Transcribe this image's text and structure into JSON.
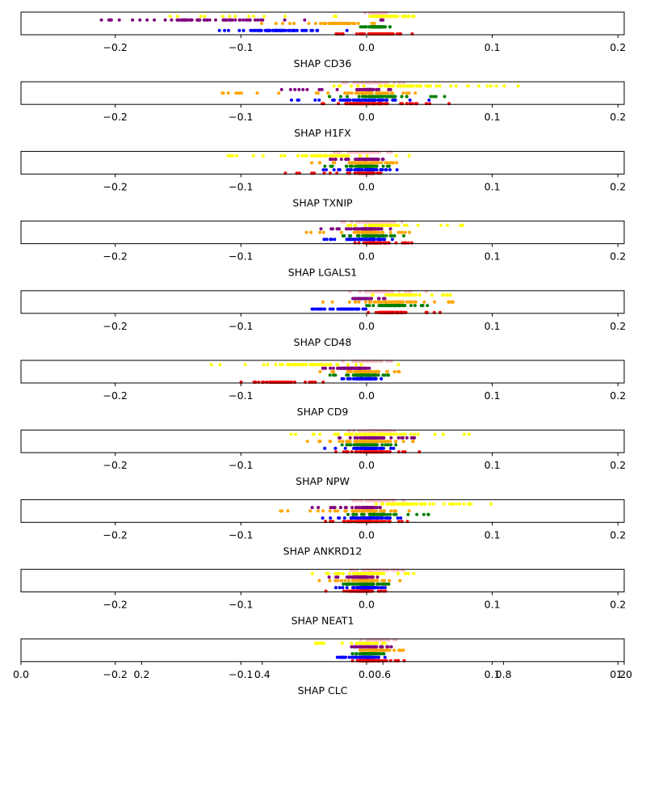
{
  "chart_data": {
    "type": "scatter",
    "subplot_type": "strip plots of SHAP values",
    "xlim": [
      -0.275,
      0.205
    ],
    "x_ticks": [
      -0.2,
      -0.1,
      0.0,
      0.1,
      0.2
    ],
    "x_tick_labels": [
      "−0.2",
      "−0.1",
      "0.0",
      "0.1",
      "0.2"
    ],
    "grid": false,
    "legend": "none",
    "overlay_axis": {
      "ticks": [
        0.0,
        0.2,
        0.4,
        0.6,
        0.8,
        1.0
      ],
      "tick_labels": [
        "0.0",
        "0.2",
        "0.4",
        "0.6",
        "0.8",
        "1.0"
      ]
    },
    "group_colors": [
      "#ffc0cb",
      "#ffff00",
      "#800080",
      "#ffa500",
      "#008000",
      "#0000ff",
      "#ff0000"
    ],
    "panels": [
      {
        "xlabel": "SHAP CD36",
        "groups": [
          {
            "color": "#ffc0cb",
            "spread": 0.012,
            "center": 0.008
          },
          {
            "color": "#ffff00",
            "min": -0.18,
            "max": 0.058,
            "center": 0.02
          },
          {
            "color": "#800080",
            "min": -0.225,
            "max": -0.035,
            "center": -0.13,
            "extra": [
              [
                0.01,
                0.015
              ]
            ]
          },
          {
            "color": "#ffa500",
            "min": -0.085,
            "max": 0.01,
            "center": -0.02
          },
          {
            "color": "#008000",
            "min": -0.005,
            "max": 0.02,
            "center": 0.008
          },
          {
            "color": "#0000ff",
            "min": -0.125,
            "max": -0.015,
            "center": -0.07
          },
          {
            "color": "#ff0000",
            "min": -0.025,
            "max": 0.037,
            "center": 0.01
          }
        ]
      },
      {
        "xlabel": "SHAP H1FX",
        "groups": [
          {
            "color": "#ffc0cb",
            "min": -0.02,
            "max": 0.03,
            "center": 0.005
          },
          {
            "color": "#ffff00",
            "min": -0.03,
            "max": 0.123,
            "center": 0.03
          },
          {
            "color": "#800080",
            "min": -0.068,
            "max": 0.02,
            "center": 0.0
          },
          {
            "color": "#ffa500",
            "min": -0.12,
            "max": 0.04,
            "center": 0.0
          },
          {
            "color": "#008000",
            "min": -0.03,
            "max": 0.068,
            "center": 0.01
          },
          {
            "color": "#0000ff",
            "min": -0.06,
            "max": 0.06,
            "center": 0.0
          },
          {
            "color": "#ff0000",
            "min": -0.045,
            "max": 0.072,
            "center": 0.0
          }
        ]
      },
      {
        "xlabel": "SHAP TXNIP",
        "groups": [
          {
            "color": "#ffc0cb",
            "min": -0.03,
            "max": 0.02,
            "center": 0.0
          },
          {
            "color": "#ffff00",
            "min": -0.112,
            "max": 0.035,
            "center": -0.03
          },
          {
            "color": "#800080",
            "min": -0.03,
            "max": 0.015,
            "center": 0.0
          },
          {
            "color": "#ffa500",
            "min": -0.05,
            "max": 0.04,
            "center": 0.0
          },
          {
            "color": "#008000",
            "min": -0.038,
            "max": 0.02,
            "center": 0.0
          },
          {
            "color": "#0000ff",
            "min": -0.035,
            "max": 0.035,
            "center": 0.0
          },
          {
            "color": "#ff0000",
            "min": -0.066,
            "max": 0.02,
            "center": 0.0
          }
        ]
      },
      {
        "xlabel": "SHAP LGALS1",
        "groups": [
          {
            "color": "#ffc0cb",
            "min": -0.02,
            "max": 0.03,
            "center": 0.008
          },
          {
            "color": "#ffff00",
            "min": -0.02,
            "max": 0.078,
            "center": 0.015
          },
          {
            "color": "#800080",
            "min": -0.04,
            "max": 0.02,
            "center": 0.0
          },
          {
            "color": "#ffa500",
            "min": -0.056,
            "max": 0.035,
            "center": 0.0
          },
          {
            "color": "#008000",
            "min": -0.02,
            "max": 0.03,
            "center": 0.005
          },
          {
            "color": "#0000ff",
            "min": -0.04,
            "max": 0.03,
            "center": 0.0
          },
          {
            "color": "#ff0000",
            "min": -0.01,
            "max": 0.038,
            "center": 0.01
          }
        ]
      },
      {
        "xlabel": "SHAP CD48",
        "groups": [
          {
            "color": "#ffc0cb",
            "min": -0.015,
            "max": 0.05,
            "center": 0.01
          },
          {
            "color": "#ffff00",
            "min": 0.0,
            "max": 0.075,
            "center": 0.03
          },
          {
            "color": "#800080",
            "min": -0.018,
            "max": 0.015,
            "center": -0.005
          },
          {
            "color": "#ffa500",
            "min": -0.035,
            "max": 0.07,
            "center": 0.02
          },
          {
            "color": "#008000",
            "min": 0.0,
            "max": 0.05,
            "center": 0.02
          },
          {
            "color": "#0000ff",
            "min": -0.045,
            "max": 0.0,
            "center": -0.015
          },
          {
            "color": "#ff0000",
            "min": 0.0,
            "max": 0.06,
            "center": 0.02
          }
        ]
      },
      {
        "xlabel": "SHAP CD9",
        "groups": [
          {
            "color": "#ffc0cb",
            "min": -0.02,
            "max": 0.02,
            "center": 0.0
          },
          {
            "color": "#ffff00",
            "min": -0.126,
            "max": 0.03,
            "center": -0.05
          },
          {
            "color": "#800080",
            "min": -0.035,
            "max": 0.01,
            "center": -0.012
          },
          {
            "color": "#ffa500",
            "min": -0.063,
            "max": 0.028,
            "center": 0.0
          },
          {
            "color": "#008000",
            "min": -0.03,
            "max": 0.02,
            "center": 0.0
          },
          {
            "color": "#0000ff",
            "min": -0.02,
            "max": 0.028,
            "center": 0.0
          },
          {
            "color": "#ff0000",
            "min": -0.103,
            "max": -0.03,
            "center": -0.07
          }
        ]
      },
      {
        "xlabel": "SHAP NPW",
        "groups": [
          {
            "color": "#ffc0cb",
            "min": -0.015,
            "max": 0.025,
            "center": 0.005
          },
          {
            "color": "#ffff00",
            "min": -0.06,
            "max": 0.085,
            "center": 0.01
          },
          {
            "color": "#800080",
            "min": -0.022,
            "max": 0.04,
            "center": 0.005
          },
          {
            "color": "#ffa500",
            "min": -0.052,
            "max": 0.05,
            "center": 0.0
          },
          {
            "color": "#008000",
            "min": -0.02,
            "max": 0.025,
            "center": 0.0
          },
          {
            "color": "#0000ff",
            "min": -0.035,
            "max": 0.025,
            "center": 0.0
          },
          {
            "color": "#ff0000",
            "min": -0.04,
            "max": 0.05,
            "center": 0.005
          }
        ]
      },
      {
        "xlabel": "SHAP ANKRD12",
        "groups": [
          {
            "color": "#ffc0cb",
            "min": -0.015,
            "max": 0.03,
            "center": 0.008
          },
          {
            "color": "#ffff00",
            "min": 0.0,
            "max": 0.1,
            "center": 0.03
          },
          {
            "color": "#800080",
            "min": -0.045,
            "max": 0.015,
            "center": 0.0
          },
          {
            "color": "#ffa500",
            "min": -0.07,
            "max": 0.035,
            "center": 0.0
          },
          {
            "color": "#008000",
            "min": -0.015,
            "max": 0.05,
            "center": 0.01
          },
          {
            "color": "#0000ff",
            "min": -0.047,
            "max": 0.03,
            "center": 0.0
          },
          {
            "color": "#ff0000",
            "min": -0.035,
            "max": 0.04,
            "center": 0.0
          }
        ]
      },
      {
        "xlabel": "SHAP NEAT1",
        "groups": [
          {
            "color": "#ffc0cb",
            "min": -0.015,
            "max": 0.03,
            "center": 0.008
          },
          {
            "color": "#ffff00",
            "min": -0.05,
            "max": 0.04,
            "center": 0.0
          },
          {
            "color": "#800080",
            "min": -0.035,
            "max": 0.01,
            "center": -0.005
          },
          {
            "color": "#ffa500",
            "min": -0.048,
            "max": 0.035,
            "center": 0.0
          },
          {
            "color": "#008000",
            "min": -0.02,
            "max": 0.018,
            "center": 0.0
          },
          {
            "color": "#0000ff",
            "min": -0.025,
            "max": 0.015,
            "center": 0.0
          },
          {
            "color": "#ff0000",
            "min": -0.035,
            "max": 0.015,
            "center": -0.005
          }
        ]
      },
      {
        "xlabel": "SHAP CLC",
        "groups": [
          {
            "color": "#ffc0cb",
            "min": -0.01,
            "max": 0.025,
            "center": 0.008
          },
          {
            "color": "#ffff00",
            "min": -0.043,
            "max": 0.015,
            "center": 0.0
          },
          {
            "color": "#800080",
            "min": -0.015,
            "max": 0.02,
            "center": 0.0
          },
          {
            "color": "#ffa500",
            "min": -0.01,
            "max": 0.03,
            "center": 0.008
          },
          {
            "color": "#008000",
            "min": -0.012,
            "max": 0.015,
            "center": 0.0
          },
          {
            "color": "#0000ff",
            "min": -0.025,
            "max": 0.015,
            "center": 0.0
          },
          {
            "color": "#ff0000",
            "min": -0.015,
            "max": 0.032,
            "center": 0.005
          }
        ]
      }
    ]
  }
}
